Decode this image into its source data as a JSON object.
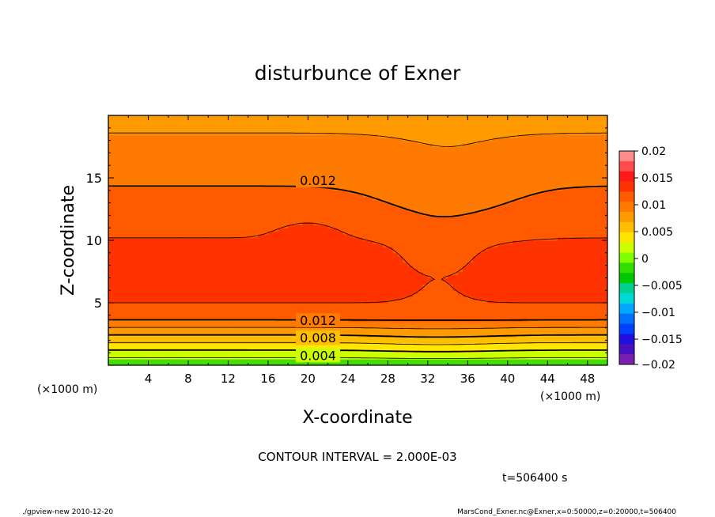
{
  "chart_data": {
    "type": "contour",
    "title": "disturbunce of Exner",
    "xlabel": "X-coordinate",
    "ylabel": "Z-coordinate",
    "x_unit": "(×1000 m)",
    "x_unit_right": "(×1000 m)",
    "xlim": [
      0,
      50
    ],
    "ylim": [
      0,
      20
    ],
    "x_ticks": [
      4,
      8,
      12,
      16,
      20,
      24,
      28,
      32,
      36,
      40,
      44,
      48
    ],
    "y_ticks": [
      5,
      10,
      15
    ],
    "contour_labels": [
      "0.012",
      "0.012",
      "0.008",
      "0.004"
    ],
    "contour_interval_text": "CONTOUR INTERVAL = 2.000E-03",
    "time_text": "t=506400 s",
    "colorbar": {
      "ticks": [
        "0.02",
        "0.015",
        "0.01",
        "0.005",
        "0",
        "−0.005",
        "−0.01",
        "−0.015",
        "−0.02"
      ],
      "range": [
        -0.02,
        0.02
      ],
      "colors": [
        "#ff8c8c",
        "#ff4d4d",
        "#ff1a1a",
        "#ff3300",
        "#ff5a00",
        "#ff7a00",
        "#ff9b00",
        "#ffbf00",
        "#ffe600",
        "#ccff00",
        "#80ff00",
        "#33dd00",
        "#00c800",
        "#00d090",
        "#00d8d8",
        "#00a8ff",
        "#0070ff",
        "#0040ff",
        "#2010e0",
        "#4a10c0",
        "#7a20b0"
      ]
    },
    "bands": [
      {
        "lower": 0.0,
        "color": "#44dd00"
      },
      {
        "lower": 0.002,
        "color": "#ccff00"
      },
      {
        "lower": 0.004,
        "color": "#ffe600"
      },
      {
        "lower": 0.006,
        "color": "#ffbf00"
      },
      {
        "lower": 0.008,
        "color": "#ff9b00"
      },
      {
        "lower": 0.01,
        "color": "#ff7a00"
      },
      {
        "lower": 0.012,
        "color": "#ff5a00"
      },
      {
        "lower": 0.014,
        "color": "#ff3300"
      },
      {
        "lower": 0.016,
        "color": "#ff1a1a"
      }
    ]
  },
  "footer": {
    "left": "./gpview-new   2010-12-20",
    "right": "MarsCond_Exner.nc@Exner,x=0:50000,z=0:20000,t=506400"
  }
}
